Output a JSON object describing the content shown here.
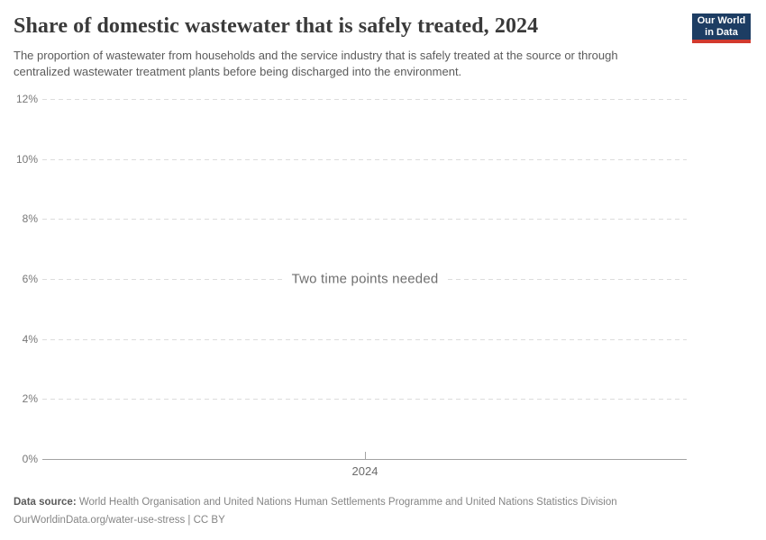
{
  "header": {
    "title": "Share of domestic wastewater that is safely treated, 2024",
    "subtitle": "The proportion of wastewater from households and the service industry that is safely treated at the source or through centralized wastewater treatment plants before being discharged into the environment.",
    "logo": {
      "line1": "Our World",
      "line2": "in Data",
      "bg_color": "#1d3d63",
      "accent_color": "#d23a2e"
    }
  },
  "chart_data": {
    "type": "line",
    "title": "Share of domestic wastewater that is safely treated, 2024",
    "series": [],
    "note": "Two time points needed",
    "x_ticks": [
      "2024"
    ],
    "y_ticks": [
      0,
      2,
      4,
      6,
      8,
      10,
      12
    ],
    "y_tick_labels": [
      "0%",
      "2%",
      "4%",
      "6%",
      "8%",
      "10%",
      "12%"
    ],
    "ylim": [
      0,
      12
    ],
    "y_unit": "%",
    "grid": true,
    "gridline_style": "dashed",
    "legend": "none",
    "note_anchor_value": 6
  },
  "footer": {
    "datasource_label": "Data source:",
    "datasource_text": " World Health Organisation and United Nations Human Settlements Programme and United Nations Statistics Division",
    "license_line": "OurWorldinData.org/water-use-stress | CC BY"
  }
}
